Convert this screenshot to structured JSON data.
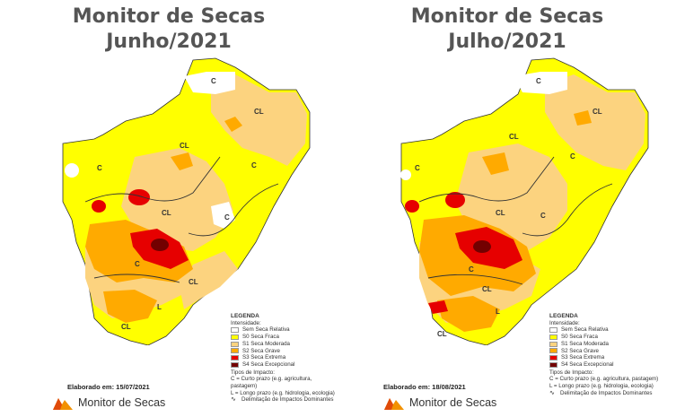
{
  "left": {
    "title_line1": "Monitor de Secas",
    "title_line2": "Junho/2021",
    "elaborado": "Elaborado em: 15/07/2021"
  },
  "right": {
    "title_line1": "Monitor de Secas",
    "title_line2": "Julho/2021",
    "elaborado": "Elaborado em: 18/08/2021"
  },
  "legend": {
    "title": "LEGENDA",
    "subtitle": "Intensidade:",
    "items": [
      {
        "label": "Sem Seca Relativa",
        "color": "#ffffff"
      },
      {
        "label": "S0 Seca Fraca",
        "color": "#ffff00"
      },
      {
        "label": "S1 Seca Moderada",
        "color": "#fcd37f"
      },
      {
        "label": "S2 Seca Grave",
        "color": "#ffaa00"
      },
      {
        "label": "S3 Seca Extrema",
        "color": "#e60000"
      },
      {
        "label": "S4 Seca Excepcional",
        "color": "#730000"
      }
    ],
    "impact_title": "Tipos de Impacto:",
    "impact_c": "C = Curto prazo (e.g. agricultura, pastagem)",
    "impact_l": "L = Longo prazo (e.g. hidrologia, ecologia)",
    "impact_line": "Delimitação de Impactos Dominantes"
  },
  "logo_text": "Monitor de Secas",
  "map_labels": {
    "c": "C",
    "cl": "CL",
    "l": "L"
  }
}
